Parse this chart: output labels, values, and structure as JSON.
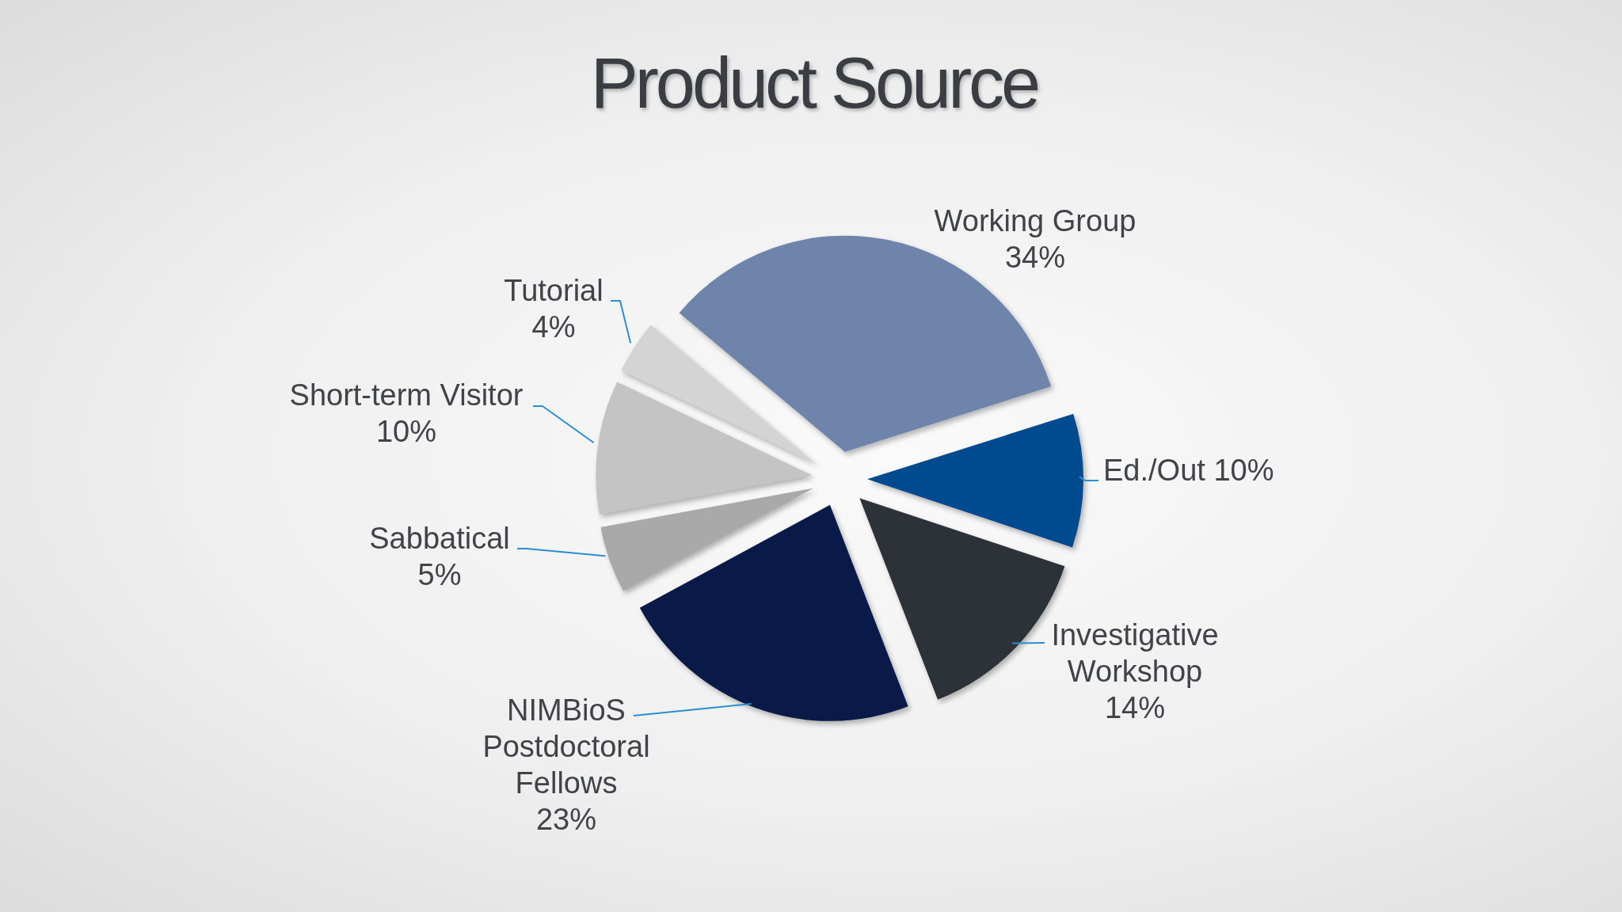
{
  "chart_data": {
    "type": "pie",
    "title": "Product Source",
    "categories": [
      "Working Group",
      "Ed./Out",
      "Investigative Workshop",
      "NIMBioS Postdoctoral Fellows",
      "Sabbatical",
      "Short-term Visitor",
      "Tutorial"
    ],
    "values": [
      34,
      10,
      14,
      23,
      5,
      10,
      4
    ],
    "value_labels": [
      "34%",
      "10%",
      "14%",
      "23%",
      "5%",
      "10%",
      "4%"
    ],
    "colors": [
      "#6f84ab",
      "#004b8f",
      "#2d3238",
      "#0a1a48",
      "#a9a9a9",
      "#c4c4c4",
      "#d4d4d4"
    ]
  }
}
